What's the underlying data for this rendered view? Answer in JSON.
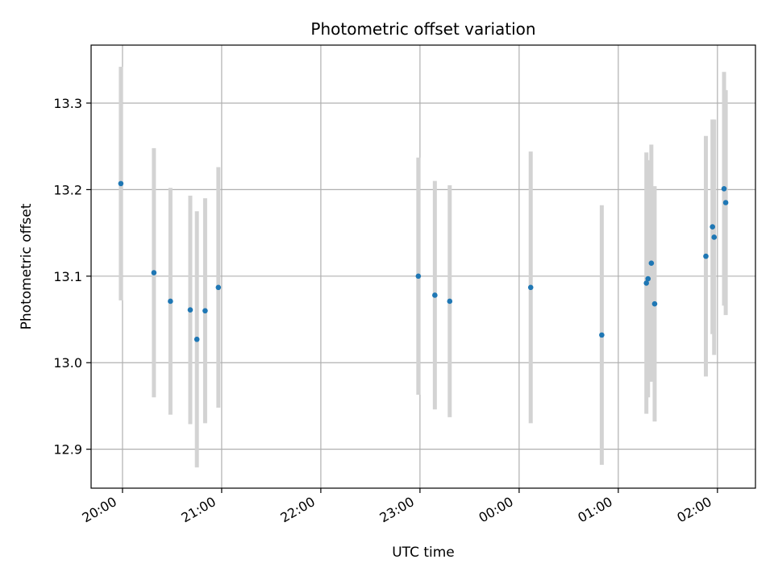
{
  "chart_data": {
    "type": "scatter",
    "title": "Photometric offset variation",
    "xlabel": "UTC time",
    "ylabel": "Photometric offset",
    "xlim": [
      "19:41",
      "02:23"
    ],
    "ylim": [
      12.855,
      13.367
    ],
    "grid": true,
    "x_ticks": [
      "20:00",
      "21:00",
      "22:00",
      "23:00",
      "00:00",
      "01:00",
      "02:00"
    ],
    "y_ticks": [
      12.9,
      13.0,
      13.1,
      13.2,
      13.3
    ],
    "colors": {
      "point": "#1f77b4",
      "error_bar": "#d3d3d3"
    },
    "points": [
      {
        "x": "19:59",
        "y": 13.207,
        "err": 0.135
      },
      {
        "x": "20:19",
        "y": 13.104,
        "err": 0.144
      },
      {
        "x": "20:29",
        "y": 13.071,
        "err": 0.131
      },
      {
        "x": "20:41",
        "y": 13.061,
        "err": 0.132
      },
      {
        "x": "20:45",
        "y": 13.027,
        "err": 0.148
      },
      {
        "x": "20:50",
        "y": 13.06,
        "err": 0.13
      },
      {
        "x": "20:58",
        "y": 13.087,
        "err": 0.139
      },
      {
        "x": "22:59",
        "y": 13.1,
        "err": 0.137
      },
      {
        "x": "23:09",
        "y": 13.078,
        "err": 0.132
      },
      {
        "x": "23:18",
        "y": 13.071,
        "err": 0.134
      },
      {
        "x": "00:07",
        "y": 13.087,
        "err": 0.157
      },
      {
        "x": "00:50",
        "y": 13.032,
        "err": 0.15
      },
      {
        "x": "01:17",
        "y": 13.092,
        "err": 0.151
      },
      {
        "x": "01:18",
        "y": 13.097,
        "err": 0.137
      },
      {
        "x": "01:20",
        "y": 13.115,
        "err": 0.137
      },
      {
        "x": "01:22",
        "y": 13.068,
        "err": 0.136
      },
      {
        "x": "01:53",
        "y": 13.123,
        "err": 0.139
      },
      {
        "x": "01:57",
        "y": 13.157,
        "err": 0.124
      },
      {
        "x": "01:58",
        "y": 13.145,
        "err": 0.136
      },
      {
        "x": "02:04",
        "y": 13.201,
        "err": 0.135
      },
      {
        "x": "02:05",
        "y": 13.185,
        "err": 0.13
      }
    ]
  }
}
